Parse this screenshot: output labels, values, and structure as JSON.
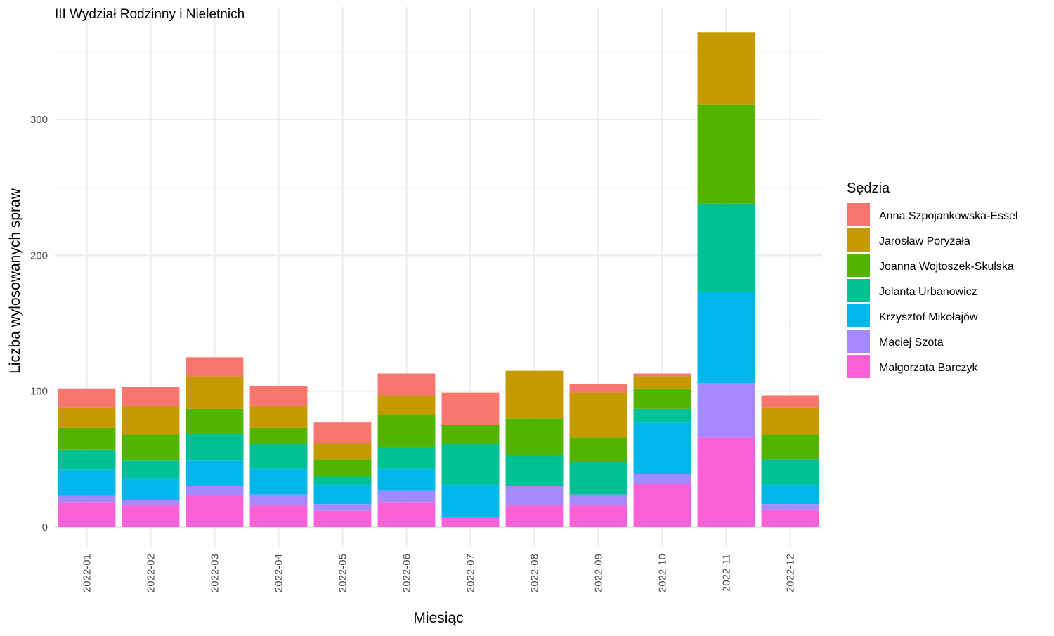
{
  "chart_data": {
    "type": "bar",
    "stacked": true,
    "title": "III Wydział Rodzinny i Nieletnich",
    "xlabel": "Miesiąc",
    "ylabel": "Liczba wylosowanych spraw",
    "ylim": [
      0,
      365
    ],
    "yticks": [
      0,
      100,
      200,
      300
    ],
    "grid": true,
    "legend_position": "right",
    "legend_title": "Sędzia",
    "categories": [
      "2022-01",
      "2022-02",
      "2022-03",
      "2022-04",
      "2022-05",
      "2022-06",
      "2022-07",
      "2022-08",
      "2022-09",
      "2022-10",
      "2022-11",
      "2022-12"
    ],
    "series": [
      {
        "name": "Anna Szpojankowska-Essel",
        "color": "#F8766D",
        "values": [
          14,
          14,
          14,
          15,
          15,
          16,
          24,
          0,
          6,
          2,
          0,
          9
        ]
      },
      {
        "name": "Jarosław Poryzała",
        "color": "#C49A00",
        "values": [
          15,
          21,
          24,
          16,
          12,
          14,
          0,
          35,
          33,
          9,
          53,
          20
        ]
      },
      {
        "name": "Joanna Wojtoszek-Skulska",
        "color": "#53B400",
        "values": [
          16,
          19,
          18,
          12,
          13,
          24,
          14,
          27,
          18,
          15,
          73,
          18
        ]
      },
      {
        "name": "Jolanta Urbanowicz",
        "color": "#00C094",
        "values": [
          15,
          13,
          20,
          18,
          6,
          16,
          30,
          23,
          24,
          10,
          65,
          19
        ]
      },
      {
        "name": "Krzysztof Mikołajów",
        "color": "#00B6EB",
        "values": [
          19,
          16,
          19,
          19,
          14,
          16,
          24,
          0,
          0,
          38,
          67,
          14
        ]
      },
      {
        "name": "Maciej Szota",
        "color": "#A58AFF",
        "values": [
          5,
          4,
          7,
          8,
          5,
          9,
          0,
          14,
          8,
          7,
          40,
          4
        ]
      },
      {
        "name": "Małgorzata Barczyk",
        "color": "#FB61D7",
        "values": [
          18,
          16,
          23,
          16,
          12,
          18,
          7,
          16,
          16,
          32,
          66,
          13
        ]
      }
    ]
  }
}
